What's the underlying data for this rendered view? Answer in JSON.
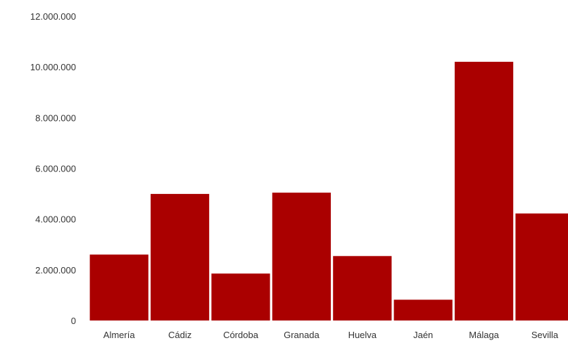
{
  "chart_data": {
    "type": "bar",
    "title": "",
    "xlabel": "",
    "ylabel": "",
    "categories": [
      "Almería",
      "Cádiz",
      "Córdoba",
      "Granada",
      "Huelva",
      "Jaén",
      "Málaga",
      "Sevilla"
    ],
    "values": [
      2600000,
      4990000,
      1850000,
      5040000,
      2540000,
      820000,
      10200000,
      4220000
    ],
    "y_ticks": [
      "0",
      "2.000.000",
      "4.000.000",
      "6.000.000",
      "8.000.000",
      "10.000.000",
      "12.000.000"
    ],
    "ylim": [
      0,
      12000000
    ],
    "bar_color": "#aa0000",
    "grid": false,
    "legend": "none"
  }
}
